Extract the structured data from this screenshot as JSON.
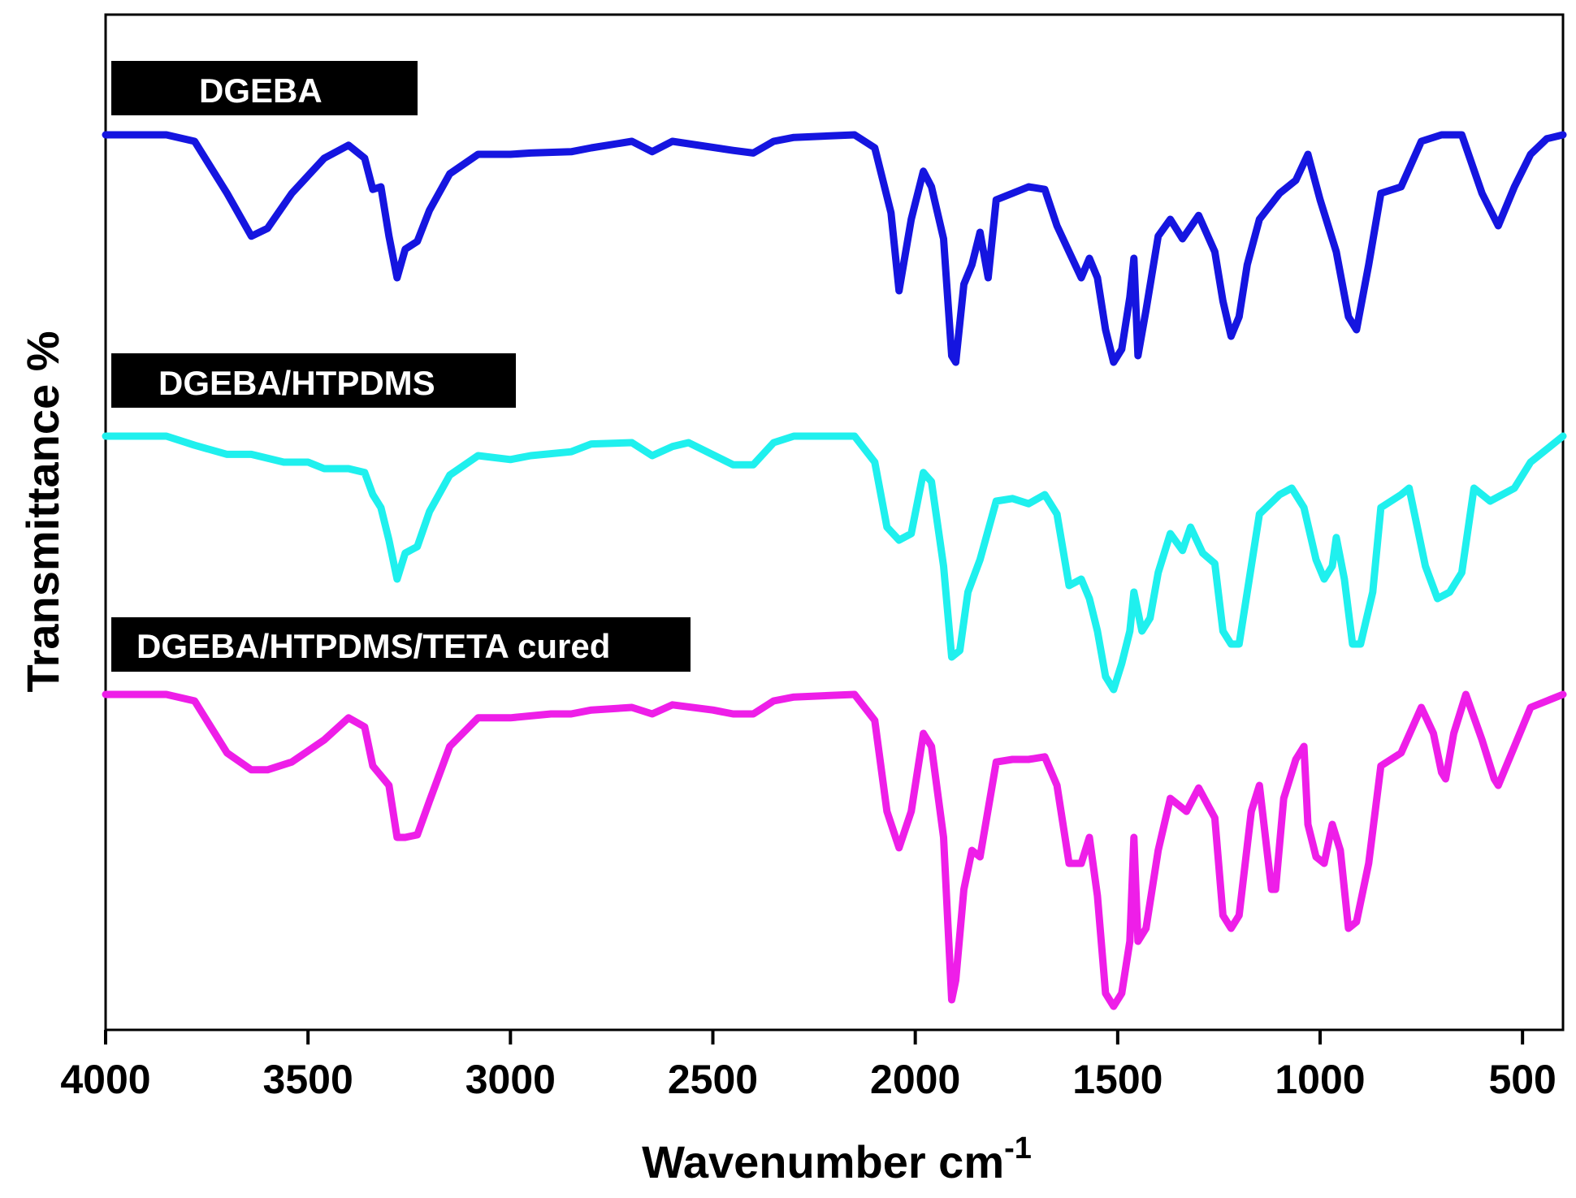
{
  "chart_data": {
    "type": "line",
    "title": "",
    "xlabel": "Wavenumber cm",
    "xlabel_superscript": "-1",
    "ylabel": "Transmittance %",
    "xlim": [
      4000,
      400
    ],
    "x_reversed": true,
    "xticks": [
      4000,
      3500,
      3000,
      2500,
      2000,
      1500,
      1000,
      500
    ],
    "xtick_labels": [
      "4000",
      "3500",
      "3000",
      "2500",
      "2000",
      "1500",
      "1000",
      "500"
    ],
    "yticks_visible": false,
    "grid": false,
    "series": [
      {
        "name": "DGEBA",
        "label": "DGEBA",
        "color": "#1515e0",
        "points": [
          [
            4000,
            0.0
          ],
          [
            3850,
            0.0
          ],
          [
            3780,
            5
          ],
          [
            3700,
            45
          ],
          [
            3640,
            78
          ],
          [
            3600,
            72
          ],
          [
            3540,
            45
          ],
          [
            3460,
            18
          ],
          [
            3400,
            8
          ],
          [
            3360,
            18
          ],
          [
            3340,
            42
          ],
          [
            3320,
            40
          ],
          [
            3300,
            78
          ],
          [
            3280,
            110
          ],
          [
            3260,
            88
          ],
          [
            3230,
            82
          ],
          [
            3200,
            58
          ],
          [
            3150,
            30
          ],
          [
            3080,
            15
          ],
          [
            3000,
            15
          ],
          [
            2950,
            14
          ],
          [
            2850,
            13
          ],
          [
            2800,
            10
          ],
          [
            2700,
            5
          ],
          [
            2650,
            13
          ],
          [
            2600,
            5
          ],
          [
            2450,
            12
          ],
          [
            2400,
            14
          ],
          [
            2350,
            5
          ],
          [
            2300,
            2
          ],
          [
            2150,
            0
          ],
          [
            2100,
            10
          ],
          [
            2060,
            60
          ],
          [
            2040,
            120
          ],
          [
            2010,
            65
          ],
          [
            1980,
            28
          ],
          [
            1960,
            40
          ],
          [
            1930,
            80
          ],
          [
            1910,
            170
          ],
          [
            1900,
            175
          ],
          [
            1880,
            115
          ],
          [
            1860,
            100
          ],
          [
            1840,
            75
          ],
          [
            1820,
            110
          ],
          [
            1800,
            50
          ],
          [
            1760,
            45
          ],
          [
            1720,
            40
          ],
          [
            1680,
            42
          ],
          [
            1650,
            70
          ],
          [
            1620,
            90
          ],
          [
            1590,
            110
          ],
          [
            1570,
            95
          ],
          [
            1550,
            110
          ],
          [
            1530,
            150
          ],
          [
            1510,
            175
          ],
          [
            1490,
            165
          ],
          [
            1470,
            125
          ],
          [
            1460,
            95
          ],
          [
            1450,
            170
          ],
          [
            1430,
            135
          ],
          [
            1400,
            78
          ],
          [
            1370,
            65
          ],
          [
            1340,
            80
          ],
          [
            1300,
            62
          ],
          [
            1260,
            90
          ],
          [
            1240,
            128
          ],
          [
            1220,
            155
          ],
          [
            1200,
            140
          ],
          [
            1180,
            100
          ],
          [
            1150,
            65
          ],
          [
            1100,
            45
          ],
          [
            1060,
            35
          ],
          [
            1030,
            15
          ],
          [
            1000,
            50
          ],
          [
            960,
            90
          ],
          [
            930,
            140
          ],
          [
            910,
            150
          ],
          [
            880,
            100
          ],
          [
            850,
            45
          ],
          [
            800,
            40
          ],
          [
            750,
            5
          ],
          [
            700,
            0
          ],
          [
            650,
            0
          ],
          [
            600,
            45
          ],
          [
            560,
            70
          ],
          [
            520,
            40
          ],
          [
            480,
            15
          ],
          [
            440,
            3
          ],
          [
            400,
            0
          ]
        ]
      },
      {
        "name": "DGEBA/HTPDMS",
        "label": "DGEBA/HTPDMS",
        "color": "#1ff0ee",
        "points": [
          [
            4000,
            0.0
          ],
          [
            3850,
            0.0
          ],
          [
            3780,
            7
          ],
          [
            3700,
            14
          ],
          [
            3640,
            14
          ],
          [
            3560,
            20
          ],
          [
            3500,
            20
          ],
          [
            3460,
            25
          ],
          [
            3400,
            25
          ],
          [
            3360,
            28
          ],
          [
            3340,
            45
          ],
          [
            3320,
            55
          ],
          [
            3300,
            80
          ],
          [
            3280,
            110
          ],
          [
            3260,
            90
          ],
          [
            3230,
            85
          ],
          [
            3200,
            58
          ],
          [
            3150,
            30
          ],
          [
            3080,
            15
          ],
          [
            3000,
            18
          ],
          [
            2950,
            15
          ],
          [
            2850,
            12
          ],
          [
            2800,
            6
          ],
          [
            2700,
            5
          ],
          [
            2650,
            15
          ],
          [
            2600,
            8
          ],
          [
            2560,
            5
          ],
          [
            2450,
            22
          ],
          [
            2400,
            22
          ],
          [
            2350,
            5
          ],
          [
            2300,
            0
          ],
          [
            2150,
            0
          ],
          [
            2100,
            20
          ],
          [
            2070,
            70
          ],
          [
            2040,
            80
          ],
          [
            2010,
            75
          ],
          [
            1980,
            28
          ],
          [
            1960,
            35
          ],
          [
            1930,
            100
          ],
          [
            1910,
            170
          ],
          [
            1890,
            165
          ],
          [
            1870,
            120
          ],
          [
            1840,
            95
          ],
          [
            1800,
            50
          ],
          [
            1760,
            48
          ],
          [
            1720,
            52
          ],
          [
            1680,
            45
          ],
          [
            1650,
            60
          ],
          [
            1620,
            115
          ],
          [
            1590,
            110
          ],
          [
            1570,
            125
          ],
          [
            1550,
            150
          ],
          [
            1530,
            185
          ],
          [
            1510,
            195
          ],
          [
            1490,
            175
          ],
          [
            1470,
            150
          ],
          [
            1460,
            120
          ],
          [
            1440,
            150
          ],
          [
            1420,
            140
          ],
          [
            1400,
            105
          ],
          [
            1370,
            75
          ],
          [
            1340,
            88
          ],
          [
            1320,
            70
          ],
          [
            1290,
            90
          ],
          [
            1260,
            98
          ],
          [
            1240,
            150
          ],
          [
            1220,
            160
          ],
          [
            1200,
            160
          ],
          [
            1180,
            120
          ],
          [
            1150,
            60
          ],
          [
            1100,
            45
          ],
          [
            1070,
            40
          ],
          [
            1040,
            55
          ],
          [
            1010,
            95
          ],
          [
            990,
            110
          ],
          [
            970,
            100
          ],
          [
            960,
            78
          ],
          [
            940,
            110
          ],
          [
            920,
            160
          ],
          [
            900,
            160
          ],
          [
            870,
            120
          ],
          [
            850,
            55
          ],
          [
            800,
            45
          ],
          [
            780,
            40
          ],
          [
            740,
            100
          ],
          [
            710,
            125
          ],
          [
            680,
            120
          ],
          [
            650,
            105
          ],
          [
            620,
            40
          ],
          [
            580,
            50
          ],
          [
            520,
            40
          ],
          [
            480,
            20
          ],
          [
            440,
            10
          ],
          [
            400,
            0
          ]
        ]
      },
      {
        "name": "DGEBA/HTPDMS/TETA cured",
        "label": "DGEBA/HTPDMS/TETA cured",
        "color": "#ee1ee8",
        "points": [
          [
            4000,
            0.0
          ],
          [
            3850,
            0.0
          ],
          [
            3780,
            5
          ],
          [
            3700,
            45
          ],
          [
            3640,
            58
          ],
          [
            3600,
            58
          ],
          [
            3540,
            52
          ],
          [
            3460,
            35
          ],
          [
            3400,
            18
          ],
          [
            3360,
            25
          ],
          [
            3340,
            55
          ],
          [
            3300,
            70
          ],
          [
            3280,
            110
          ],
          [
            3260,
            110
          ],
          [
            3230,
            108
          ],
          [
            3200,
            82
          ],
          [
            3150,
            40
          ],
          [
            3080,
            18
          ],
          [
            3000,
            18
          ],
          [
            2900,
            15
          ],
          [
            2850,
            15
          ],
          [
            2800,
            12
          ],
          [
            2700,
            10
          ],
          [
            2650,
            15
          ],
          [
            2600,
            8
          ],
          [
            2500,
            12
          ],
          [
            2450,
            15
          ],
          [
            2400,
            15
          ],
          [
            2350,
            5
          ],
          [
            2300,
            2
          ],
          [
            2150,
            0
          ],
          [
            2100,
            20
          ],
          [
            2070,
            90
          ],
          [
            2040,
            118
          ],
          [
            2010,
            90
          ],
          [
            1980,
            30
          ],
          [
            1960,
            40
          ],
          [
            1930,
            110
          ],
          [
            1910,
            235
          ],
          [
            1900,
            220
          ],
          [
            1880,
            150
          ],
          [
            1860,
            120
          ],
          [
            1840,
            125
          ],
          [
            1800,
            52
          ],
          [
            1760,
            50
          ],
          [
            1720,
            50
          ],
          [
            1680,
            48
          ],
          [
            1650,
            70
          ],
          [
            1620,
            130
          ],
          [
            1590,
            130
          ],
          [
            1570,
            110
          ],
          [
            1550,
            155
          ],
          [
            1530,
            230
          ],
          [
            1510,
            240
          ],
          [
            1490,
            230
          ],
          [
            1470,
            190
          ],
          [
            1460,
            110
          ],
          [
            1450,
            190
          ],
          [
            1430,
            180
          ],
          [
            1400,
            120
          ],
          [
            1370,
            80
          ],
          [
            1330,
            90
          ],
          [
            1300,
            72
          ],
          [
            1260,
            95
          ],
          [
            1240,
            170
          ],
          [
            1220,
            180
          ],
          [
            1200,
            170
          ],
          [
            1170,
            90
          ],
          [
            1150,
            70
          ],
          [
            1120,
            150
          ],
          [
            1110,
            150
          ],
          [
            1090,
            80
          ],
          [
            1060,
            50
          ],
          [
            1040,
            40
          ],
          [
            1030,
            100
          ],
          [
            1010,
            125
          ],
          [
            990,
            130
          ],
          [
            970,
            100
          ],
          [
            950,
            120
          ],
          [
            930,
            180
          ],
          [
            910,
            175
          ],
          [
            880,
            130
          ],
          [
            850,
            55
          ],
          [
            800,
            45
          ],
          [
            750,
            10
          ],
          [
            720,
            30
          ],
          [
            700,
            60
          ],
          [
            690,
            65
          ],
          [
            670,
            30
          ],
          [
            640,
            0
          ],
          [
            600,
            35
          ],
          [
            570,
            65
          ],
          [
            560,
            70
          ],
          [
            520,
            40
          ],
          [
            480,
            10
          ],
          [
            440,
            5
          ],
          [
            400,
            0
          ]
        ]
      }
    ]
  }
}
